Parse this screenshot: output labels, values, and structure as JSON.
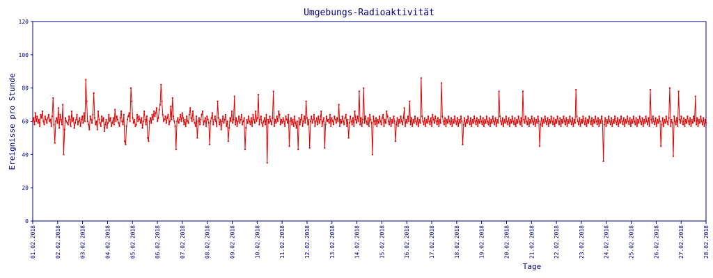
{
  "chart_data": {
    "type": "line",
    "title": "Umgebungs-Radioaktivität",
    "xlabel": "Tage",
    "ylabel": "Ereignisse pro Stunde",
    "ylim": [
      0,
      120
    ],
    "yticks": [
      0,
      20,
      40,
      60,
      80,
      100,
      120
    ],
    "xticks": [
      "01.02.2018",
      "02.02.2018",
      "03.02.2018",
      "04.02.2018",
      "05.02.2018",
      "06.02.2018",
      "07.02.2018",
      "08.02.2018",
      "09.02.2018",
      "10.02.2018",
      "11.02.2018",
      "12.02.2018",
      "13.02.2018",
      "14.02.2018",
      "15.02.2018",
      "16.02.2018",
      "17.02.2018",
      "18.02.2018",
      "19.02.2018",
      "20.02.2018",
      "21.02.2018",
      "22.02.2018",
      "23.02.2018",
      "24.02.2018",
      "25.02.2018",
      "26.02.2018",
      "27.02.2018",
      "28.02.2018"
    ],
    "grid": false,
    "colors": {
      "series": "#e00000",
      "axis": "#000080",
      "text": "#000080"
    },
    "series": [
      {
        "values": [
          60,
          62,
          58,
          65,
          60,
          63,
          59,
          61,
          57,
          64,
          62,
          66,
          60,
          58,
          63,
          61,
          59,
          62,
          64,
          60,
          61,
          57,
          63,
          74,
          58,
          47,
          60,
          62,
          59,
          68,
          56,
          64,
          61,
          58,
          70,
          40,
          55,
          62,
          60,
          59,
          58,
          63,
          61,
          57,
          66,
          60,
          62,
          56,
          59,
          61,
          64,
          58,
          60,
          62,
          57,
          61,
          63,
          59,
          65,
          60,
          85,
          72,
          60,
          58,
          55,
          63,
          61,
          59,
          64,
          77,
          62,
          58,
          60,
          55,
          66,
          61,
          59,
          57,
          63,
          60,
          62,
          54,
          58,
          61,
          56,
          59,
          64,
          60,
          62,
          57,
          59,
          62,
          58,
          67,
          60,
          63,
          61,
          59,
          57,
          62,
          66,
          60,
          58,
          64,
          48,
          46,
          57,
          61,
          63,
          65,
          60,
          80,
          72,
          62,
          59,
          61,
          57,
          58,
          64,
          60,
          63,
          61,
          59,
          62,
          56,
          60,
          66,
          61,
          58,
          63,
          50,
          48,
          60,
          62,
          59,
          64,
          61,
          66,
          63,
          65,
          68,
          60,
          62,
          67,
          70,
          82,
          72,
          64,
          60,
          61,
          63,
          59,
          62,
          64,
          58,
          60,
          69,
          61,
          74,
          63,
          60,
          57,
          43,
          60,
          62,
          59,
          61,
          64,
          60,
          65,
          62,
          58,
          61,
          57,
          63,
          60,
          59,
          64,
          68,
          62,
          60,
          66,
          61,
          59,
          57,
          63,
          50,
          60,
          62,
          58,
          61,
          64,
          66,
          58,
          60,
          62,
          57,
          63,
          61,
          59,
          46,
          60,
          62,
          65,
          58,
          61,
          63,
          60,
          57,
          72,
          62,
          58,
          61,
          55,
          60,
          63,
          59,
          61,
          64,
          57,
          60,
          48,
          56,
          62,
          60,
          66,
          59,
          61,
          75,
          58,
          62,
          57,
          60,
          63,
          59,
          61,
          64,
          58,
          60,
          62,
          43,
          56,
          61,
          59,
          63,
          60,
          58,
          62,
          57,
          64,
          61,
          59,
          66,
          60,
          62,
          76,
          58,
          61,
          63,
          59,
          57,
          60,
          62,
          58,
          64,
          35,
          61,
          59,
          63,
          60,
          58,
          62,
          78,
          57,
          61,
          59,
          63,
          60,
          66,
          64,
          58,
          61,
          59,
          62,
          60,
          57,
          63,
          61,
          59,
          64,
          45,
          60,
          62,
          58,
          61,
          57,
          63,
          59,
          56,
          60,
          43,
          62,
          58,
          61,
          64,
          57,
          60,
          63,
          59,
          72,
          62,
          58,
          61,
          44,
          60,
          63,
          59,
          61,
          64,
          57,
          60,
          62,
          58,
          63,
          59,
          61,
          66,
          57,
          60,
          62,
          44,
          58,
          63,
          60,
          61,
          59,
          64,
          57,
          62,
          60,
          58,
          63,
          61,
          59,
          62,
          60,
          70,
          57,
          61,
          59,
          63,
          60,
          58,
          62,
          64,
          57,
          61,
          50,
          59,
          63,
          60,
          58,
          62,
          57,
          66,
          61,
          59,
          63,
          60,
          78,
          58,
          62,
          57,
          61,
          80,
          59,
          63,
          60,
          58,
          62,
          57,
          64,
          61,
          59,
          40,
          63,
          60,
          58,
          62,
          57,
          61,
          59,
          63,
          60,
          58,
          62,
          64,
          57,
          61,
          59,
          66,
          63,
          60,
          58,
          62,
          57,
          61,
          59,
          63,
          60,
          48,
          58,
          62,
          57,
          61,
          59,
          63,
          60,
          58,
          62,
          68,
          57,
          61,
          59,
          63,
          60,
          72,
          58,
          62,
          57,
          61,
          59,
          63,
          60,
          58,
          62,
          57,
          61,
          59,
          86,
          63,
          60,
          58,
          62,
          57,
          61,
          59,
          63,
          60,
          58,
          62,
          57,
          64,
          61,
          59,
          63,
          60,
          58,
          62,
          57,
          61,
          59,
          83,
          63,
          60,
          58,
          62,
          57,
          61,
          59,
          63,
          60,
          58,
          62,
          57,
          61,
          59,
          63,
          60,
          58,
          62,
          57,
          61,
          59,
          63,
          60,
          46,
          58,
          62,
          57,
          61,
          59,
          63,
          60,
          58,
          62,
          57,
          61,
          59,
          63,
          60,
          58,
          62,
          57,
          61,
          59,
          63,
          60,
          58,
          62,
          57,
          61,
          59,
          63,
          60,
          58,
          62,
          57,
          61,
          59,
          63,
          60,
          58,
          62,
          57,
          61,
          59,
          78,
          63,
          60,
          58,
          62,
          57,
          61,
          59,
          63,
          60,
          58,
          62,
          57,
          61,
          59,
          63,
          60,
          58,
          62,
          57,
          61,
          59,
          63,
          60,
          58,
          62,
          57,
          78,
          61,
          59,
          63,
          60,
          58,
          62,
          57,
          61,
          59,
          63,
          60,
          58,
          62,
          57,
          61,
          59,
          63,
          60,
          45,
          58,
          62,
          57,
          61,
          59,
          63,
          60,
          58,
          62,
          57,
          61,
          59,
          63,
          60,
          58,
          62,
          57,
          61,
          59,
          63,
          60,
          58,
          62,
          57,
          61,
          59,
          63,
          60,
          58,
          62,
          57,
          61,
          59,
          63,
          60,
          58,
          62,
          57,
          61,
          59,
          79,
          63,
          60,
          58,
          62,
          57,
          61,
          59,
          63,
          60,
          58,
          62,
          57,
          61,
          59,
          63,
          60,
          58,
          62,
          57,
          61,
          59,
          63,
          60,
          58,
          62,
          57,
          61,
          59,
          63,
          60,
          36,
          58,
          62,
          57,
          61,
          59,
          63,
          60,
          58,
          62,
          57,
          61,
          59,
          63,
          60,
          58,
          62,
          57,
          61,
          59,
          63,
          60,
          58,
          62,
          57,
          61,
          59,
          63,
          60,
          58,
          62,
          57,
          61,
          59,
          63,
          60,
          58,
          62,
          57,
          61,
          59,
          63,
          60,
          58,
          62,
          57,
          61,
          59,
          63,
          60,
          58,
          62,
          57,
          79,
          61,
          59,
          63,
          60,
          58,
          62,
          57,
          61,
          59,
          63,
          60,
          45,
          58,
          62,
          57,
          61,
          59,
          63,
          60,
          58,
          62,
          80,
          57,
          61,
          59,
          39,
          63,
          60,
          58,
          62,
          57,
          78,
          61,
          59,
          63,
          60,
          58,
          62,
          57,
          61,
          59,
          63,
          60,
          58,
          62,
          57,
          61,
          59,
          63,
          60,
          75,
          58,
          62,
          57,
          61,
          59,
          63,
          60,
          58,
          62,
          57,
          61,
          59
        ]
      }
    ]
  }
}
